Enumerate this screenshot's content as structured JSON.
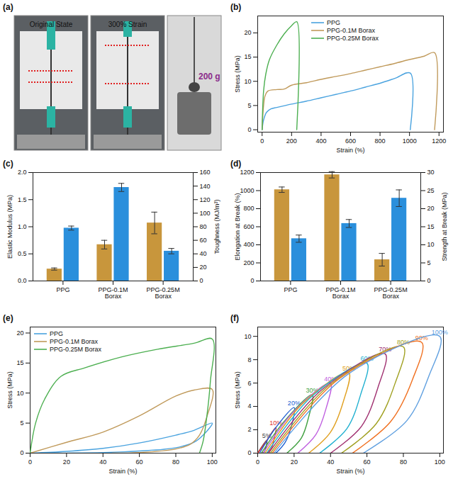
{
  "chart_data": [
    {
      "label": "(a)",
      "type": "image",
      "texts": [
        "Original State",
        "300% Strain",
        "200 g"
      ]
    },
    {
      "label": "(b)",
      "type": "line",
      "x_label": "Strain (%)",
      "y_label": "Stress (MPa)",
      "xlim": [
        -30,
        1230
      ],
      "ylim": [
        -0.5,
        23.5
      ],
      "xticks": [
        0,
        200,
        400,
        600,
        800,
        1000,
        1200
      ],
      "yticks": [
        0,
        5,
        10,
        15,
        20
      ],
      "legend": "upper center",
      "series": [
        {
          "name": "PPG",
          "color": "#4aa3df",
          "x": [
            0,
            10,
            30,
            60,
            100,
            200,
            300,
            400,
            500,
            600,
            700,
            800,
            900,
            1005,
            1005
          ],
          "values": [
            0,
            2,
            3.6,
            4.3,
            4.6,
            5.3,
            5.9,
            6.6,
            7.3,
            8,
            8.8,
            9.6,
            10.6,
            11.7,
            0
          ]
        },
        {
          "name": "PPG-0.1M Borax",
          "color": "#c09a5b",
          "x": [
            0,
            10,
            20,
            40,
            100,
            150,
            200,
            300,
            400,
            500,
            600,
            700,
            800,
            900,
            1000,
            1100,
            1170,
            1170
          ],
          "values": [
            0,
            5,
            7,
            8,
            8.3,
            8.4,
            9.2,
            9.7,
            10.4,
            11,
            11.6,
            12.3,
            13,
            13.7,
            14.5,
            15.2,
            15.9,
            0
          ]
        },
        {
          "name": "PPG-0.25M Borax",
          "color": "#4caf50",
          "x": [
            0,
            10,
            25,
            50,
            100,
            150,
            200,
            235,
            235
          ],
          "values": [
            0,
            8,
            11.5,
            14.5,
            17.5,
            19.8,
            21.5,
            22.3,
            0
          ]
        }
      ]
    },
    {
      "label": "(c)",
      "type": "bar",
      "categories": [
        "PPG",
        "PPG-0.1M Borax",
        "PPG-0.25M Borax"
      ],
      "y_label": "Elastic Modulus (MPa)",
      "y2_label": "Toughness (MJ/m³)",
      "ylim": [
        0,
        2
      ],
      "yticks": [
        {
          "value": 0,
          "label": "0.0"
        },
        0.5,
        {
          "value": 1,
          "label": "1.0"
        },
        1.5,
        {
          "value": 2,
          "label": "2.0"
        }
      ],
      "y2lim": [
        0,
        160
      ],
      "y2ticks": [
        0,
        20,
        40,
        60,
        80,
        100,
        120,
        140,
        160
      ],
      "series": [
        {
          "color": "#c8963c",
          "values": [
            0.22,
            0.67,
            1.07
          ],
          "errors": [
            0.02,
            0.08,
            0.2
          ]
        },
        {
          "color": "#2a8fdc",
          "axis": "y2",
          "values": [
            78,
            138,
            44
          ],
          "errors": [
            3,
            6,
            4
          ]
        }
      ]
    },
    {
      "label": "(d)",
      "type": "bar",
      "categories": [
        "PPG",
        "PPG-0.1M Borax",
        "PPG-0.25M Borax"
      ],
      "y_label": "Elongation at Break (%)",
      "y2_label": "Strength at Break (MPa)",
      "ylim": [
        0,
        1200
      ],
      "yticks": [
        0,
        200,
        400,
        600,
        800,
        1000,
        1200
      ],
      "y2lim": [
        0,
        30
      ],
      "y2ticks": [
        0,
        5,
        10,
        15,
        20,
        25,
        30
      ],
      "series": [
        {
          "color": "#c8963c",
          "values": [
            1010,
            1175,
            235
          ],
          "errors": [
            30,
            35,
            70
          ]
        },
        {
          "color": "#2a8fdc",
          "axis": "y2",
          "values": [
            11.7,
            15.9,
            22.9
          ],
          "errors": [
            1,
            1.1,
            2.3
          ]
        }
      ]
    },
    {
      "label": "(e)",
      "type": "line",
      "x_label": "Strain (%)",
      "y_label": "Stress (MPa)",
      "xlim": [
        0,
        102
      ],
      "ylim": [
        0,
        21
      ],
      "xticks": [
        0,
        20,
        40,
        60,
        80,
        100
      ],
      "yticks": [
        0,
        5,
        10,
        15,
        20
      ],
      "legend": "upper left",
      "series": [
        {
          "name": "PPG",
          "color": "#4aa3df",
          "x": [
            0,
            20,
            40,
            60,
            80,
            90,
            100,
            95,
            90,
            80,
            60,
            40,
            20,
            10
          ],
          "values": [
            0,
            0.3,
            0.8,
            1.7,
            3,
            3.8,
            5,
            3,
            1.8,
            0.9,
            0.35,
            0.1,
            0.02,
            0
          ]
        },
        {
          "name": "PPG-0.1M Borax",
          "color": "#c09a5b",
          "x": [
            0,
            20,
            40,
            60,
            80,
            90,
            100,
            97,
            93,
            88,
            80,
            60,
            45
          ],
          "values": [
            0,
            1.8,
            3.5,
            6.2,
            9.5,
            10.5,
            10.6,
            6,
            3,
            1.5,
            0.7,
            0.1,
            0
          ]
        },
        {
          "name": "PPG-0.25M Borax",
          "color": "#4caf50",
          "x": [
            0,
            3,
            8,
            17,
            30,
            50,
            70,
            90,
            100,
            99,
            97,
            95,
            93
          ],
          "values": [
            0,
            5,
            9,
            12.8,
            14.2,
            16,
            17.3,
            18.3,
            19,
            12,
            6,
            2,
            0
          ]
        }
      ]
    },
    {
      "label": "(f)",
      "type": "line",
      "x_label": "Strain (%)",
      "y_label": "Stress (MPa)",
      "xlim": [
        0,
        102
      ],
      "ylim": [
        0,
        10.8
      ],
      "xticks": [
        0,
        20,
        40,
        60,
        80,
        100
      ],
      "yticks": [
        0,
        2,
        4,
        6,
        8,
        10
      ],
      "legend": "inline",
      "series": [
        {
          "name": "5%",
          "color": "#444444",
          "x": [
            0,
            2.5,
            5,
            4.5,
            3.5,
            2.5
          ],
          "values": [
            0,
            0.6,
            1.1,
            0.5,
            0.1,
            0
          ]
        },
        {
          "name": "10%",
          "color": "#e03030",
          "x": [
            0,
            5,
            10,
            9,
            7.5,
            5
          ],
          "values": [
            0,
            1.1,
            2.2,
            1.2,
            0.4,
            0
          ]
        },
        {
          "name": "20%",
          "color": "#2060d0",
          "x": [
            1,
            10,
            20,
            18.5,
            15,
            10
          ],
          "values": [
            0,
            2.2,
            3.9,
            2.3,
            0.9,
            0
          ]
        },
        {
          "name": "30%",
          "color": "#40a040",
          "x": [
            2,
            15,
            30,
            28,
            24,
            16
          ],
          "values": [
            0,
            2.8,
            5,
            3.1,
            1.3,
            0
          ]
        },
        {
          "name": "40%",
          "color": "#c060e0",
          "x": [
            3,
            20,
            40,
            37.5,
            32,
            22
          ],
          "values": [
            0,
            3.6,
            6,
            3.8,
            1.6,
            0
          ]
        },
        {
          "name": "50%",
          "color": "#e0a020",
          "x": [
            4,
            25,
            50,
            47,
            40,
            28
          ],
          "values": [
            0,
            4.3,
            6.9,
            4.4,
            1.8,
            0
          ]
        },
        {
          "name": "60%",
          "color": "#20b0d0",
          "x": [
            5,
            30,
            60,
            56.5,
            49,
            34
          ],
          "values": [
            0,
            4.9,
            7.7,
            5,
            2.1,
            0
          ]
        },
        {
          "name": "70%",
          "color": "#a03070",
          "x": [
            6,
            35,
            70,
            66,
            57,
            40
          ],
          "values": [
            0,
            5.4,
            8.5,
            5.6,
            2.3,
            0
          ]
        },
        {
          "name": "80%",
          "color": "#a0a020",
          "x": [
            7,
            40,
            80,
            75.5,
            65,
            46
          ],
          "values": [
            0,
            5.9,
            9.1,
            6,
            2.5,
            0
          ]
        },
        {
          "name": "90%",
          "color": "#f07020",
          "x": [
            8,
            45,
            90,
            85,
            73,
            52
          ],
          "values": [
            0,
            6.4,
            9.5,
            6.3,
            2.7,
            0
          ]
        },
        {
          "name": "100%",
          "color": "#60a0e0",
          "x": [
            9,
            50,
            100,
            94,
            82,
            58
          ],
          "values": [
            0,
            6.8,
            10,
            6.6,
            2.8,
            0
          ]
        }
      ]
    }
  ]
}
